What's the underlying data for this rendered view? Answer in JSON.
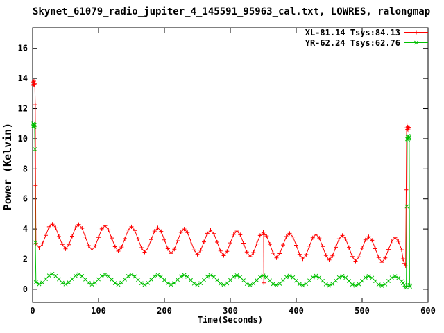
{
  "chart_data": {
    "type": "line",
    "title": "Skynet_61079_radio_jupiter_4_145591_95963_cal.txt, LOWRES, ralongmap",
    "xlabel": "Time(Seconds)",
    "ylabel": "Power (Kelvin)",
    "xlim": [
      0,
      600
    ],
    "ylim": [
      -0.88,
      17.37
    ],
    "xticks": [
      0,
      100,
      200,
      300,
      400,
      500,
      600
    ],
    "yticks": [
      0,
      2,
      4,
      6,
      8,
      10,
      12,
      14,
      16
    ],
    "grid": false,
    "legend_position": "top-right-inside",
    "background_color": "#ffffff",
    "axis_color": "#000000",
    "series": [
      {
        "name": "XL-81.14 Tsys:84.13",
        "color": "#ff0000",
        "marker": "plus",
        "pre": [
          [
            0.8,
            13.55
          ],
          [
            1.2,
            13.76
          ],
          [
            1.6,
            13.62
          ],
          [
            2.0,
            13.82
          ],
          [
            2.4,
            13.58
          ],
          [
            2.9,
            13.7
          ],
          [
            3.4,
            13.64
          ],
          [
            4.0,
            12.25
          ],
          [
            4.5,
            6.9
          ]
        ],
        "t0": 5,
        "dt": 5,
        "values": [
          3.05,
          2.74,
          3.02,
          3.58,
          4.15,
          4.32,
          4.08,
          3.5,
          2.98,
          2.68,
          2.96,
          3.52,
          4.08,
          4.3,
          4.05,
          3.47,
          2.9,
          2.6,
          2.88,
          3.44,
          4.01,
          4.22,
          3.94,
          3.4,
          2.83,
          2.53,
          2.8,
          3.36,
          3.93,
          4.15,
          3.9,
          3.34,
          2.76,
          2.46,
          2.74,
          3.3,
          3.86,
          4.08,
          3.84,
          3.28,
          2.69,
          2.38,
          2.66,
          3.22,
          3.78,
          4.0,
          3.76,
          3.2,
          2.61,
          2.31,
          2.59,
          3.15,
          3.71,
          3.93,
          3.69,
          3.13,
          2.54,
          2.23,
          2.52,
          3.08,
          3.64,
          3.86,
          3.62,
          3.06,
          2.47,
          2.16,
          2.44,
          3.01,
          3.57,
          3.79,
          3.54,
          2.99,
          2.39,
          2.08,
          2.37,
          2.94,
          3.5,
          3.71,
          3.47,
          2.92,
          2.32,
          2.01,
          2.3,
          2.86,
          3.42,
          3.64,
          3.4,
          2.84,
          2.25,
          1.94,
          2.22,
          2.79,
          3.35,
          3.57,
          3.33,
          2.77,
          2.17,
          1.86,
          2.15,
          2.72,
          3.28,
          3.49,
          3.25,
          2.69,
          2.1,
          1.79,
          2.08,
          2.64,
          3.2,
          3.42,
          3.18,
          2.62
        ],
        "post": [
          [
            562,
            2.02
          ],
          [
            564,
            1.71
          ],
          [
            566,
            1.55
          ],
          [
            566.8,
            6.6
          ],
          [
            567.5,
            10.72
          ],
          [
            568.1,
            10.85
          ],
          [
            568.7,
            10.62
          ],
          [
            569.3,
            10.78
          ],
          [
            570.0,
            10.7
          ],
          [
            570.6,
            10.58
          ],
          [
            571.3,
            10.75
          ]
        ],
        "dropout": [
          [
            350.5,
            3.62
          ],
          [
            350.8,
            0.42
          ]
        ]
      },
      {
        "name": "YR-62.24 Tsys:62.76",
        "color": "#00c000",
        "marker": "cross",
        "pre": [
          [
            0.9,
            10.82
          ],
          [
            1.3,
            11.0
          ],
          [
            1.7,
            10.88
          ],
          [
            2.1,
            10.95
          ],
          [
            2.6,
            10.78
          ],
          [
            3.1,
            10.9
          ],
          [
            3.6,
            9.3
          ],
          [
            4.2,
            3.1
          ]
        ],
        "t0": 5,
        "dt": 5,
        "values": [
          0.46,
          0.34,
          0.44,
          0.68,
          0.91,
          1.02,
          0.88,
          0.66,
          0.43,
          0.33,
          0.45,
          0.67,
          0.9,
          0.99,
          0.87,
          0.65,
          0.42,
          0.32,
          0.44,
          0.66,
          0.88,
          0.97,
          0.86,
          0.64,
          0.41,
          0.31,
          0.43,
          0.65,
          0.87,
          0.96,
          0.85,
          0.63,
          0.4,
          0.3,
          0.42,
          0.64,
          0.86,
          0.95,
          0.84,
          0.62,
          0.39,
          0.31,
          0.41,
          0.63,
          0.85,
          0.94,
          0.83,
          0.61,
          0.38,
          0.3,
          0.4,
          0.62,
          0.84,
          0.93,
          0.82,
          0.6,
          0.37,
          0.29,
          0.39,
          0.61,
          0.83,
          0.92,
          0.81,
          0.59,
          0.36,
          0.28,
          0.38,
          0.6,
          0.82,
          0.91,
          0.8,
          0.58,
          0.35,
          0.27,
          0.37,
          0.59,
          0.81,
          0.9,
          0.79,
          0.57,
          0.34,
          0.26,
          0.36,
          0.58,
          0.8,
          0.89,
          0.78,
          0.56,
          0.33,
          0.25,
          0.35,
          0.57,
          0.79,
          0.88,
          0.77,
          0.55,
          0.32,
          0.24,
          0.34,
          0.56,
          0.78,
          0.87,
          0.76,
          0.54,
          0.31,
          0.23,
          0.33,
          0.55,
          0.77,
          0.86,
          0.75,
          0.53
        ],
        "post": [
          [
            562,
            0.4
          ],
          [
            564,
            0.27
          ],
          [
            566,
            0.17
          ],
          [
            567,
            0.12
          ],
          [
            567.8,
            5.5
          ],
          [
            568.4,
            9.98
          ],
          [
            569.0,
            10.12
          ],
          [
            569.6,
            9.95
          ],
          [
            570.2,
            10.18
          ],
          [
            570.8,
            10.02
          ],
          [
            571.4,
            10.1
          ],
          [
            572.0,
            0.28
          ],
          [
            572.6,
            0.18
          ]
        ]
      }
    ]
  }
}
